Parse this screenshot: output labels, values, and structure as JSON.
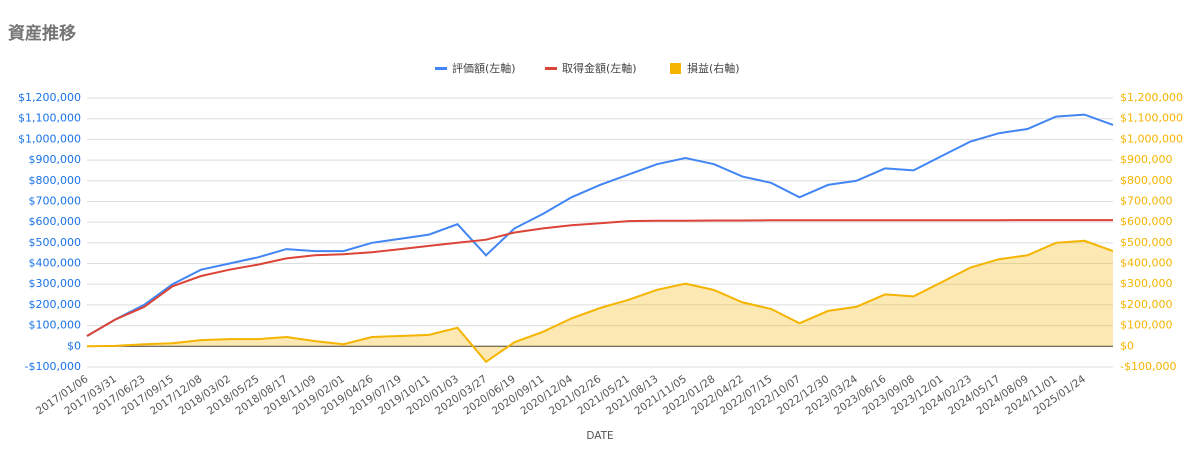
{
  "chart_data": {
    "type": "line",
    "title": "資産推移",
    "x_label": "DATE",
    "categories": [
      "2017/01/06",
      "2017/03/31",
      "2017/06/23",
      "2017/09/15",
      "2017/12/08",
      "2018/03/02",
      "2018/05/25",
      "2018/08/17",
      "2018/11/09",
      "2019/02/01",
      "2019/04/26",
      "2019/07/19",
      "2019/10/11",
      "2020/01/03",
      "2020/03/27",
      "2020/06/19",
      "2020/09/11",
      "2020/12/04",
      "2021/02/26",
      "2021/05/21",
      "2021/08/13",
      "2021/11/05",
      "2022/01/28",
      "2022/04/22",
      "2022/07/15",
      "2022/10/07",
      "2022/12/30",
      "2023/03/24",
      "2023/06/16",
      "2023/09/08",
      "2023/12/01",
      "2024/02/23",
      "2024/05/17",
      "2024/08/09",
      "2024/11/01",
      "2025/01/24",
      null
    ],
    "series": [
      {
        "name": "評価額(左軸)",
        "color": "#4285f4",
        "values": [
          50000,
          130000,
          200000,
          300000,
          370000,
          400000,
          430000,
          470000,
          460000,
          460000,
          500000,
          520000,
          540000,
          590000,
          440000,
          570000,
          640000,
          720000,
          780000,
          830000,
          880000,
          910000,
          880000,
          820000,
          790000,
          720000,
          780000,
          800000,
          860000,
          850000,
          920000,
          990000,
          1030000,
          1050000,
          1110000,
          1120000,
          1070000
        ]
      },
      {
        "name": "取得金額(左軸)",
        "color": "#db4437",
        "values": [
          50000,
          130000,
          190000,
          290000,
          340000,
          370000,
          395000,
          425000,
          440000,
          445000,
          455000,
          470000,
          485000,
          500000,
          515000,
          550000,
          570000,
          585000,
          595000,
          605000,
          607000,
          607000,
          608000,
          608000,
          609000,
          609000,
          609000,
          609000,
          609000,
          609000,
          609000,
          609000,
          609000,
          610000,
          610000,
          610000,
          610000
        ]
      },
      {
        "name": "損益(右軸)",
        "color": "#f4b400",
        "axis": "y2",
        "area": true,
        "values": [
          0,
          2000,
          10000,
          15000,
          30000,
          35000,
          35000,
          45000,
          25000,
          10000,
          45000,
          50000,
          55000,
          90000,
          -75000,
          20000,
          70000,
          135000,
          185000,
          225000,
          273000,
          303000,
          272000,
          212000,
          181000,
          111000,
          171000,
          191000,
          251000,
          241000,
          311000,
          381000,
          421000,
          440000,
          500000,
          510000,
          460000
        ]
      }
    ],
    "ylim": [
      -100000,
      1200000
    ],
    "yticks": [
      {
        "value": -100000,
        "label": "-$100,000"
      },
      {
        "value": 0,
        "label": "$0"
      },
      {
        "value": 100000,
        "label": "$100,000"
      },
      {
        "value": 200000,
        "label": "$200,000"
      },
      {
        "value": 300000,
        "label": "$300,000"
      },
      {
        "value": 400000,
        "label": "$400,000"
      },
      {
        "value": 500000,
        "label": "$500,000"
      },
      {
        "value": 600000,
        "label": "$600,000"
      },
      {
        "value": 700000,
        "label": "$700,000"
      },
      {
        "value": 800000,
        "label": "$800,000"
      },
      {
        "value": 900000,
        "label": "$900,000"
      },
      {
        "value": 1000000,
        "label": "$1,000,000"
      },
      {
        "value": 1100000,
        "label": "$1,100,000"
      },
      {
        "value": 1200000,
        "label": "$1,200,000"
      }
    ],
    "y2lim": [
      -100000,
      1200000
    ],
    "y2ticks": [
      {
        "value": -100000,
        "label": "-$100,000"
      },
      {
        "value": 0,
        "label": "$0"
      },
      {
        "value": 100000,
        "label": "$100,000"
      },
      {
        "value": 200000,
        "label": "$200,000"
      },
      {
        "value": 300000,
        "label": "$300,000"
      },
      {
        "value": 400000,
        "label": "$400,000"
      },
      {
        "value": 500000,
        "label": "$500,000"
      },
      {
        "value": 600000,
        "label": "$600,000"
      },
      {
        "value": 700000,
        "label": "$700,000"
      },
      {
        "value": 800000,
        "label": "$800,000"
      },
      {
        "value": 900000,
        "label": "$900,000"
      },
      {
        "value": 1000000,
        "label": "$1,000,000"
      },
      {
        "value": 1100000,
        "label": "$1,100,000"
      },
      {
        "value": 1200000,
        "label": "$1,200,000"
      }
    ],
    "grid": true
  }
}
